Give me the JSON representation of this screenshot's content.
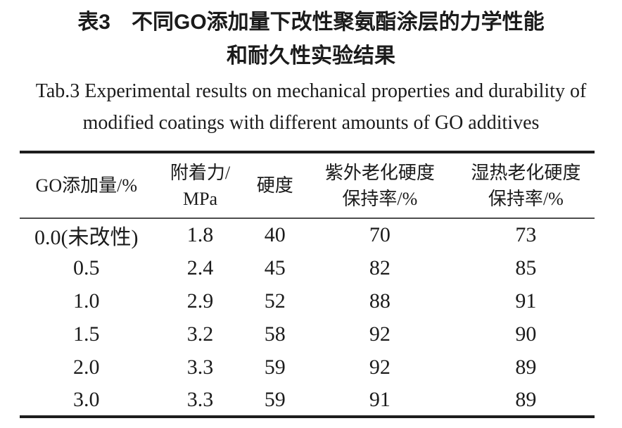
{
  "caption": {
    "zh_line1": "表3　不同GO添加量下改性聚氨酯涂层的力学性能",
    "zh_line2": "和耐久性实验结果",
    "en_line1": "Tab.3 Experimental results on mechanical properties and durability of",
    "en_line2": "modified coatings with different amounts of GO additives"
  },
  "table": {
    "headers": [
      {
        "line1": "GO添加量/%",
        "line2": ""
      },
      {
        "line1": "附着力/",
        "line2": "MPa"
      },
      {
        "line1": "硬度",
        "line2": ""
      },
      {
        "line1": "紫外老化硬度",
        "line2": "保持率/%"
      },
      {
        "line1": "湿热老化硬度",
        "line2": "保持率/%"
      }
    ],
    "rows": [
      [
        "0.0(未改性)",
        "1.8",
        "40",
        "70",
        "73"
      ],
      [
        "0.5",
        "2.4",
        "45",
        "82",
        "85"
      ],
      [
        "1.0",
        "2.9",
        "52",
        "88",
        "91"
      ],
      [
        "1.5",
        "3.2",
        "58",
        "92",
        "90"
      ],
      [
        "2.0",
        "3.3",
        "59",
        "92",
        "89"
      ],
      [
        "3.0",
        "3.3",
        "59",
        "91",
        "89"
      ]
    ]
  },
  "chart_data": {
    "type": "table",
    "title": "表3 不同GO添加量下改性聚氨酯涂层的力学性能和耐久性实验结果 / Tab.3 Experimental results on mechanical properties and durability of modified coatings with different amounts of GO additives",
    "columns": [
      "GO添加量/%",
      "附着力/MPa",
      "硬度",
      "紫外老化硬度保持率/%",
      "湿热老化硬度保持率/%"
    ],
    "rows": [
      {
        "go_amount": "0.0(未改性)",
        "adhesion_mpa": 1.8,
        "hardness": 40,
        "uv_aging_hardness_retention_pct": 70,
        "damp_heat_aging_hardness_retention_pct": 73
      },
      {
        "go_amount": "0.5",
        "adhesion_mpa": 2.4,
        "hardness": 45,
        "uv_aging_hardness_retention_pct": 82,
        "damp_heat_aging_hardness_retention_pct": 85
      },
      {
        "go_amount": "1.0",
        "adhesion_mpa": 2.9,
        "hardness": 52,
        "uv_aging_hardness_retention_pct": 88,
        "damp_heat_aging_hardness_retention_pct": 91
      },
      {
        "go_amount": "1.5",
        "adhesion_mpa": 3.2,
        "hardness": 58,
        "uv_aging_hardness_retention_pct": 92,
        "damp_heat_aging_hardness_retention_pct": 90
      },
      {
        "go_amount": "2.0",
        "adhesion_mpa": 3.3,
        "hardness": 59,
        "uv_aging_hardness_retention_pct": 92,
        "damp_heat_aging_hardness_retention_pct": 89
      },
      {
        "go_amount": "3.0",
        "adhesion_mpa": 3.3,
        "hardness": 59,
        "uv_aging_hardness_retention_pct": 91,
        "damp_heat_aging_hardness_retention_pct": 89
      }
    ],
    "colors": {
      "text": "#1b1b1b",
      "background": "#ffffff",
      "rule": "#1d1d1d"
    }
  }
}
